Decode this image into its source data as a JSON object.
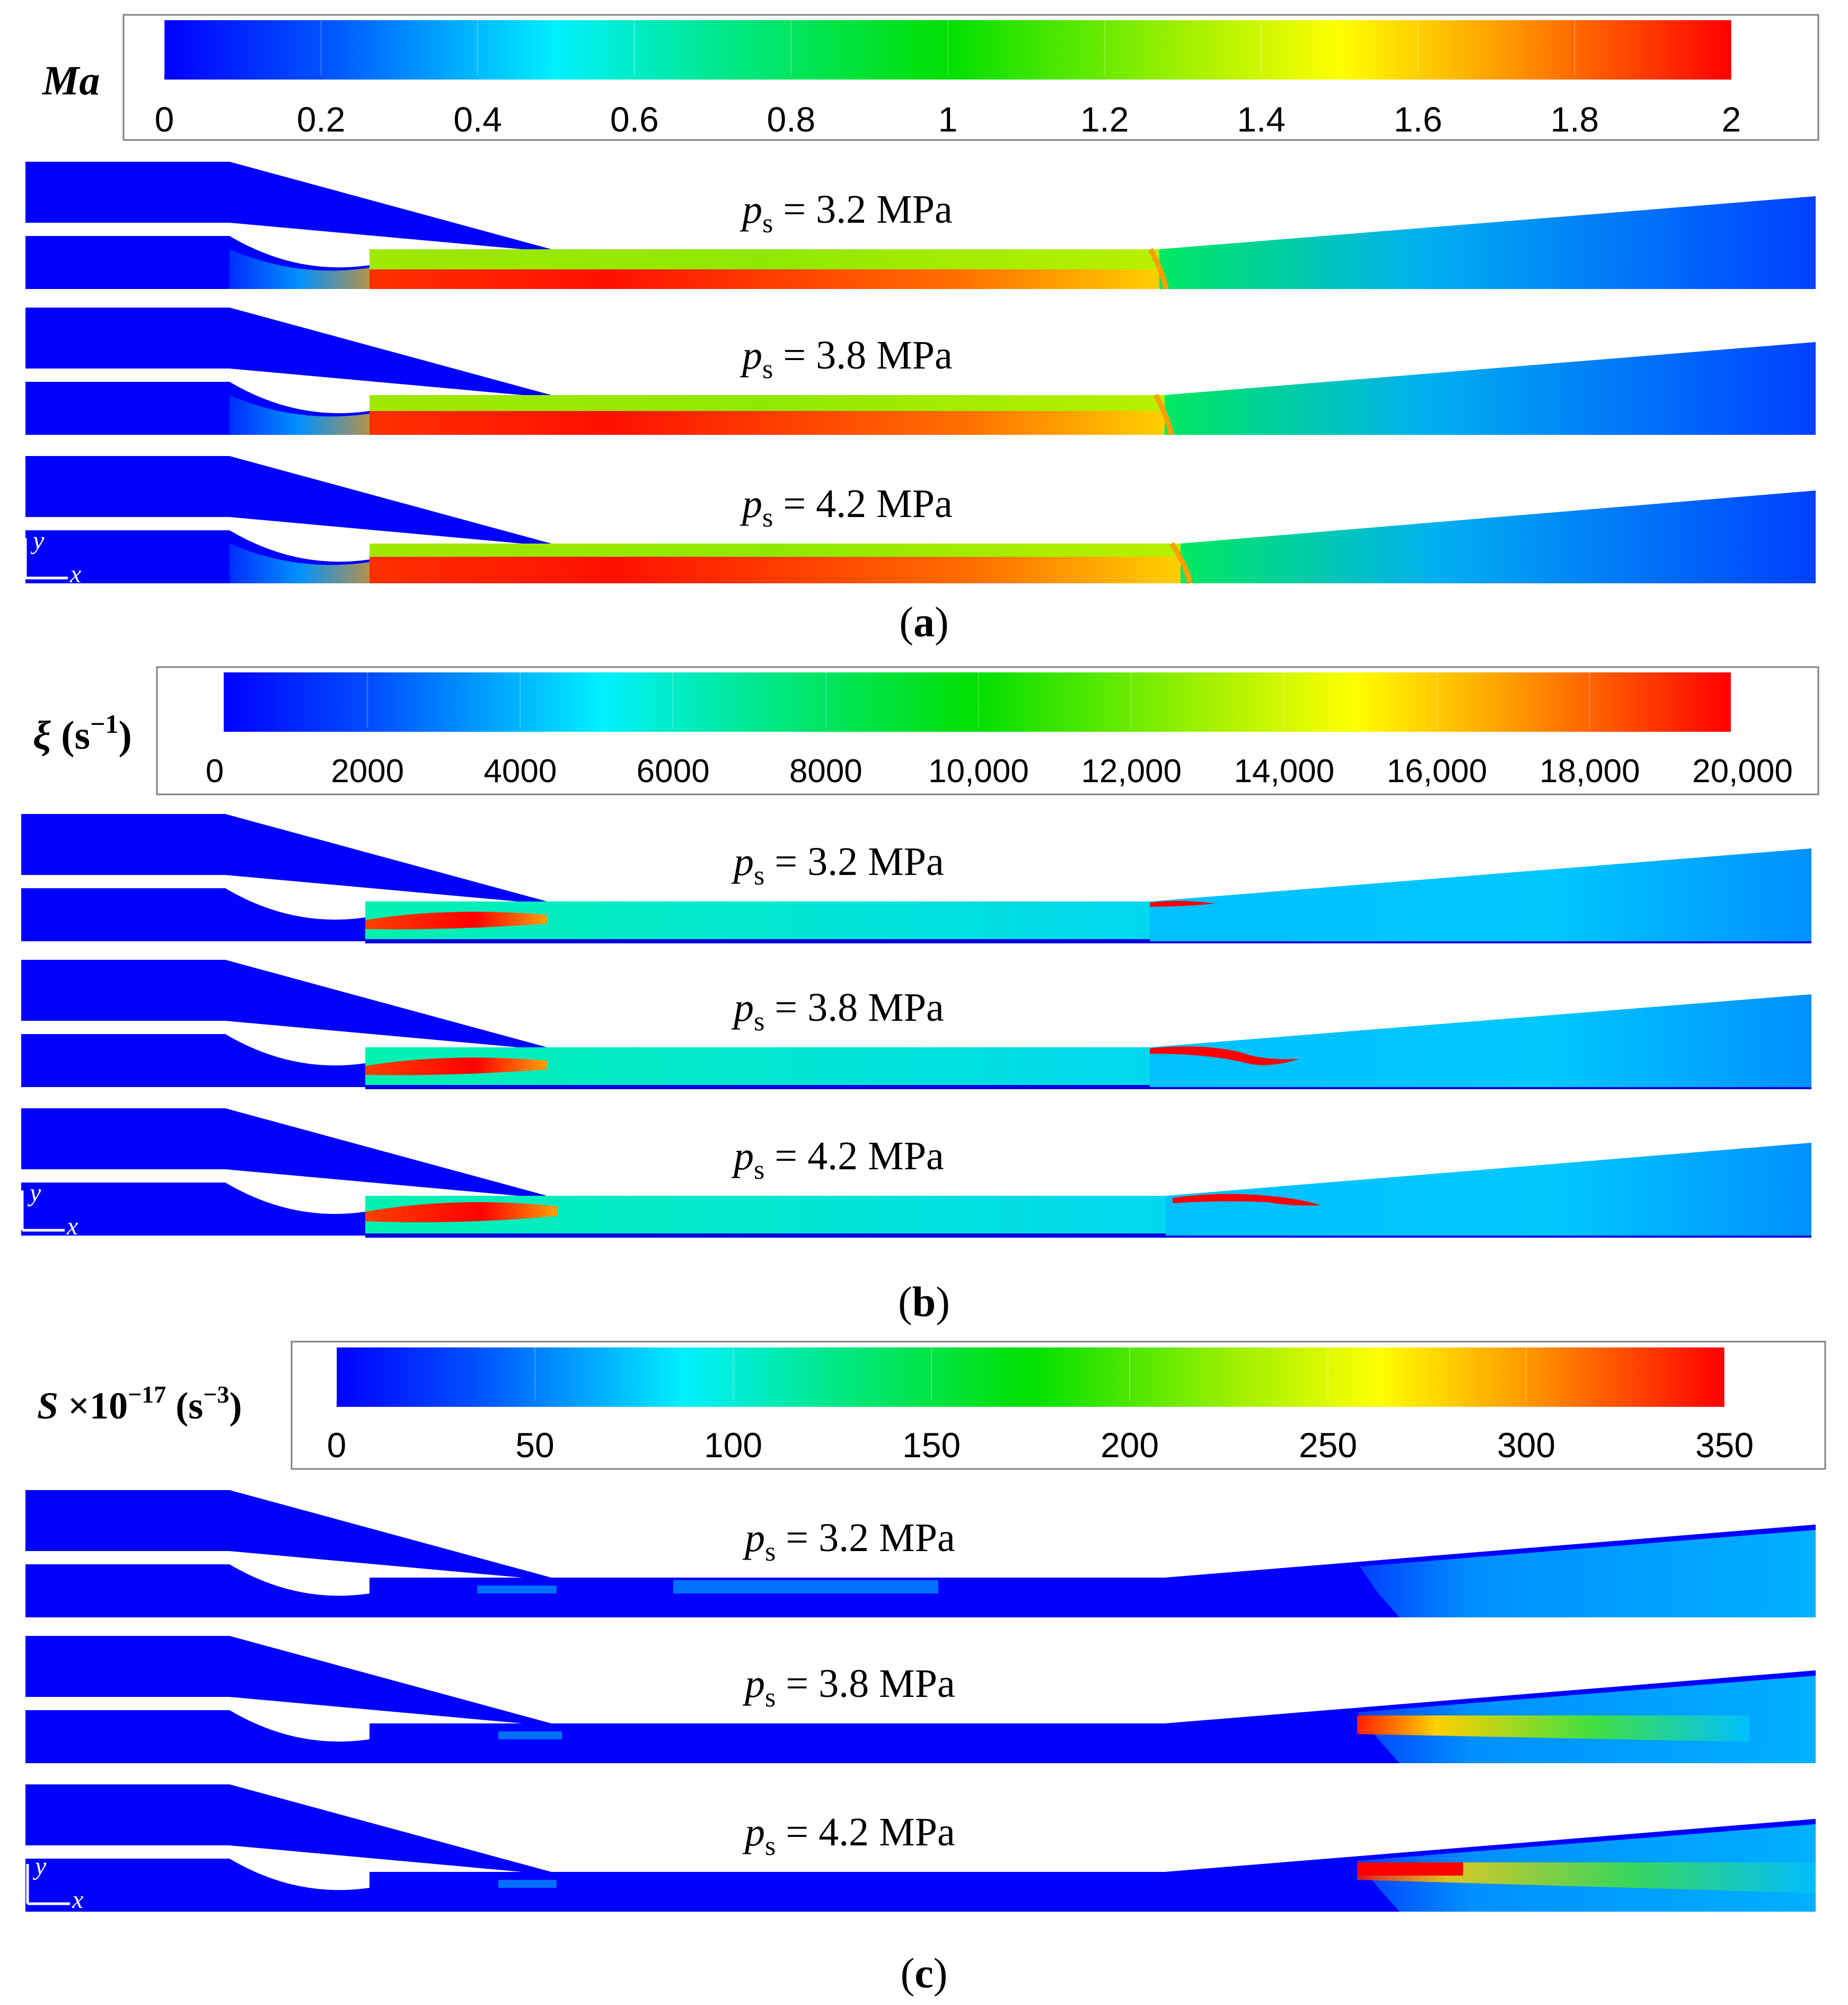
{
  "panels": [
    {
      "id": "a",
      "caption": "(a)",
      "caption_letter": "a",
      "colorbar": {
        "symbol": "Ma",
        "symbol_extra": "",
        "ticks": [
          "0",
          "0.2",
          "0.4",
          "0.6",
          "0.8",
          "1",
          "1.2",
          "1.4",
          "1.6",
          "1.8",
          "2"
        ]
      },
      "cases": [
        {
          "symbol": "p",
          "subscript": "s",
          "text": " = 3.2 MPa"
        },
        {
          "symbol": "p",
          "subscript": "s",
          "text": " = 3.8 MPa"
        },
        {
          "symbol": "p",
          "subscript": "s",
          "text": " = 4.2 MPa"
        }
      ],
      "axis": {
        "x": "x",
        "y": "y"
      }
    },
    {
      "id": "b",
      "caption": "(b)",
      "caption_letter": "b",
      "colorbar": {
        "symbol": "ξ",
        "symbol_extra": " (s",
        "exponent": "−1",
        "close": ")",
        "ticks": [
          "0",
          "2000",
          "4000",
          "6000",
          "8000",
          "10,000",
          "12,000",
          "14,000",
          "16,000",
          "18,000",
          "20,000"
        ]
      },
      "cases": [
        {
          "symbol": "p",
          "subscript": "s",
          "text": " = 3.2 MPa"
        },
        {
          "symbol": "p",
          "subscript": "s",
          "text": " = 3.8 MPa"
        },
        {
          "symbol": "p",
          "subscript": "s",
          "text": " = 4.2 MPa"
        }
      ],
      "axis": {
        "x": "x",
        "y": "y"
      }
    },
    {
      "id": "c",
      "caption": "(c)",
      "caption_letter": "c",
      "colorbar": {
        "symbol": "S",
        "symbol_extra": " ×10",
        "exponent": "−17",
        "unit_open": " (s",
        "unit_exponent": "−3",
        "close": ")",
        "ticks": [
          "0",
          "50",
          "100",
          "150",
          "200",
          "250",
          "300",
          "350"
        ]
      },
      "cases": [
        {
          "symbol": "p",
          "subscript": "s",
          "text": " = 3.2 MPa"
        },
        {
          "symbol": "p",
          "subscript": "s",
          "text": " = 3.8 MPa"
        },
        {
          "symbol": "p",
          "subscript": "s",
          "text": " = 4.2 MPa"
        }
      ],
      "axis": {
        "x": "x",
        "y": "y"
      }
    }
  ],
  "colormap": [
    "#0000ff",
    "#0050ff",
    "#00a0ff",
    "#00f0ff",
    "#00e890",
    "#00e000",
    "#60e800",
    "#c0f000",
    "#ffff00",
    "#ffa000",
    "#ff5000",
    "#ff0000"
  ]
}
